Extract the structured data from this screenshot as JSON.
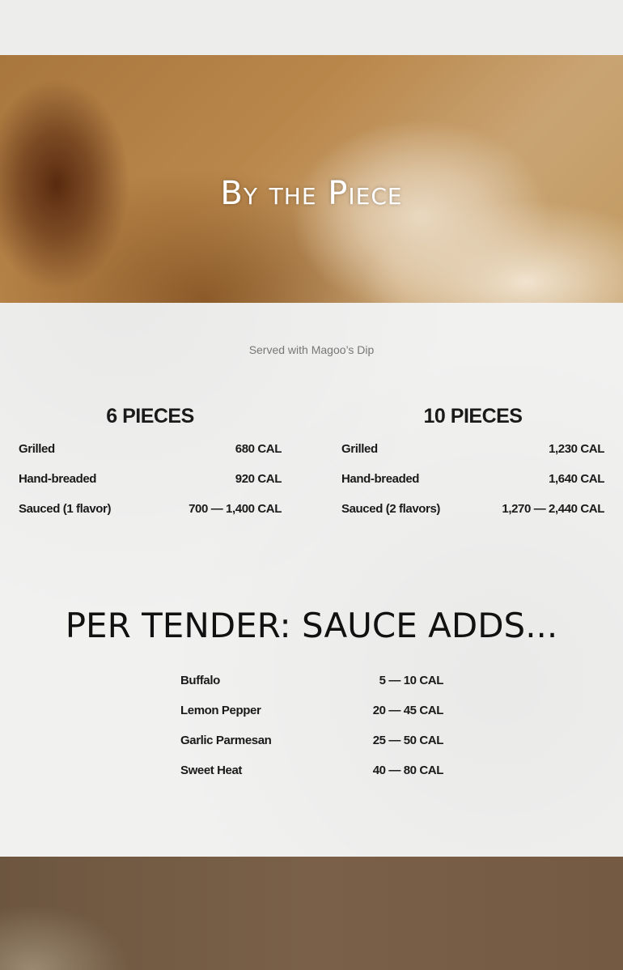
{
  "hero": {
    "title": "By the Piece"
  },
  "subtitle": "Served with Magoo’s Dip",
  "columns": [
    {
      "heading": "6 PIECES",
      "rows": [
        {
          "label": "Grilled",
          "value": "680 CAL"
        },
        {
          "label": "Hand-breaded",
          "value": "920 CAL"
        },
        {
          "label": "Sauced (1 flavor)",
          "value": "700 — 1,400 CAL"
        }
      ]
    },
    {
      "heading": "10 PIECES",
      "rows": [
        {
          "label": "Grilled",
          "value": "1,230 CAL"
        },
        {
          "label": "Hand-breaded",
          "value": "1,640 CAL"
        },
        {
          "label": "Sauced (2 flavors)",
          "value": "1,270 — 2,440 CAL"
        }
      ]
    }
  ],
  "sauce_section": {
    "title": "PER TENDER: SAUCE ADDS...",
    "rows": [
      {
        "label": "Buffalo",
        "value": "5 — 10 CAL"
      },
      {
        "label": "Lemon Pepper",
        "value": "20 — 45 CAL"
      },
      {
        "label": "Garlic Parmesan",
        "value": "25 — 50 CAL"
      },
      {
        "label": "Sweet Heat",
        "value": "40 — 80 CAL"
      }
    ]
  }
}
